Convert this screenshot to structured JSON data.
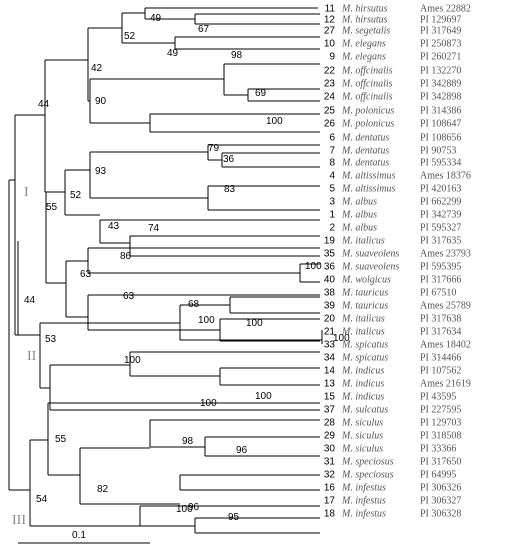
{
  "taxa": [
    {
      "num": "11",
      "species": "M. hirsutus",
      "acc": "Ames 22882"
    },
    {
      "num": "12",
      "species": "M. hirsutus",
      "acc": "PI 129697"
    },
    {
      "num": "27",
      "species": "M. segetalis",
      "acc": "PI 317649"
    },
    {
      "num": "10",
      "species": "M. elegans",
      "acc": "PI 250873"
    },
    {
      "num": "9",
      "species": "M. elegans",
      "acc": "PI 260271"
    },
    {
      "num": "22",
      "species": "M. offcinalis",
      "acc": "PI 132270"
    },
    {
      "num": "23",
      "species": "M. offcinalis",
      "acc": "PI 342889"
    },
    {
      "num": "24",
      "species": "M. offcinalis",
      "acc": "PI 342898"
    },
    {
      "num": "25",
      "species": "M. polonicus",
      "acc": "PI 314386"
    },
    {
      "num": "26",
      "species": "M. polonicus",
      "acc": "PI 108647"
    },
    {
      "num": "6",
      "species": "M. dentatus",
      "acc": "PI 108656"
    },
    {
      "num": "7",
      "species": "M. dentatus",
      "acc": "PI 90753"
    },
    {
      "num": "8",
      "species": "M. dentatus",
      "acc": "PI 595334"
    },
    {
      "num": "4",
      "species": "M. altissimus",
      "acc": "Ames 18376"
    },
    {
      "num": "5",
      "species": "M. altissimus",
      "acc": "PI 420163"
    },
    {
      "num": "3",
      "species": "M. albus",
      "acc": "PI 662299"
    },
    {
      "num": "1",
      "species": "M. albus",
      "acc": "PI 342739"
    },
    {
      "num": "2",
      "species": "M. albus",
      "acc": "PI 595327"
    },
    {
      "num": "19",
      "species": "M. italicus",
      "acc": "PI 317635"
    },
    {
      "num": "35",
      "species": "M. suaveolens",
      "acc": "Ames 23793"
    },
    {
      "num": "36",
      "species": "M. suaveolens",
      "acc": "PI 595395"
    },
    {
      "num": "40",
      "species": "M. wolgicus",
      "acc": "PI 317666"
    },
    {
      "num": "38",
      "species": "M. tauricus",
      "acc": "PI 67510"
    },
    {
      "num": "39",
      "species": "M. tauricus",
      "acc": "Ames 25789"
    },
    {
      "num": "20",
      "species": "M. italicus",
      "acc": "PI 317638"
    },
    {
      "num": "21",
      "species": "M. italicus",
      "acc": "PI 317634"
    },
    {
      "num": "33",
      "species": "M. spicatus",
      "acc": "Ames 18402"
    },
    {
      "num": "34",
      "species": "M. spicatus",
      "acc": "PI 314466"
    },
    {
      "num": "14",
      "species": "M. indicus",
      "acc": "PI 107562"
    },
    {
      "num": "13",
      "species": "M. indicus",
      "acc": "Ames 21619"
    },
    {
      "num": "15",
      "species": "M. indicus",
      "acc": "PI 43595"
    },
    {
      "num": "37",
      "species": "M. sulcatus",
      "acc": "PI 227595"
    },
    {
      "num": "28",
      "species": "M. siculus",
      "acc": "PI 129703"
    },
    {
      "num": "29",
      "species": "M. siculus",
      "acc": "PI 318508"
    },
    {
      "num": "30",
      "species": "M. siculus",
      "acc": "PI 33366"
    },
    {
      "num": "31",
      "species": "M. speciosus",
      "acc": "PI 317650"
    },
    {
      "num": "32",
      "species": "M. speciosus",
      "acc": "PI 64995"
    },
    {
      "num": "16",
      "species": "M. infestus",
      "acc": "PI 306326"
    },
    {
      "num": "17",
      "species": "M. infestus",
      "acc": "PI 306327"
    },
    {
      "num": "18",
      "species": "M. infestus",
      "acc": "PI 306328"
    }
  ],
  "bootstrap": [
    "49",
    "67",
    "52",
    "49",
    "42",
    "98",
    "69",
    "90",
    "100",
    "44",
    "79",
    "36",
    "93",
    "83",
    "52",
    "43",
    "74",
    "55",
    "86",
    "100",
    "63",
    "63",
    "100",
    "44",
    "68",
    "100",
    "100",
    "53",
    "100",
    "100",
    "100",
    "55",
    "98",
    "96",
    "82",
    "96",
    "54",
    "100",
    "95"
  ],
  "groups": [
    "I",
    "II",
    "III"
  ],
  "scale": {
    "label": "0.1"
  }
}
